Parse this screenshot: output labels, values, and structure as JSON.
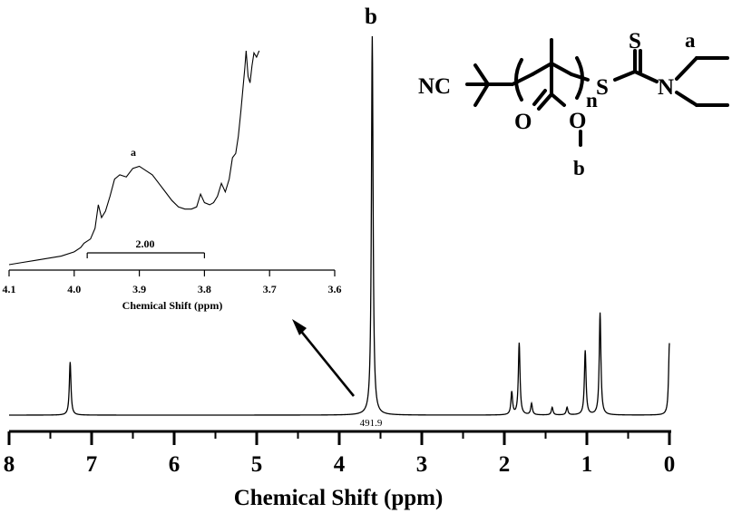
{
  "chart_data": [
    {
      "type": "line",
      "name": "main-spectrum",
      "xlabel": "Chemical Shift (ppm)",
      "xlim": [
        8,
        0
      ],
      "x_ticks": [
        8,
        7,
        6,
        5,
        4,
        3,
        2,
        1,
        0
      ],
      "x_tick_labels": [
        "8",
        "7",
        "6",
        "5",
        "4",
        "3",
        "2",
        "1",
        "0"
      ],
      "peaks": [
        {
          "x": 7.26,
          "height": 0.14
        },
        {
          "x": 3.6,
          "height": 1.0,
          "label": "b"
        },
        {
          "x": 1.91,
          "height": 0.06
        },
        {
          "x": 1.82,
          "height": 0.19
        },
        {
          "x": 1.67,
          "height": 0.03
        },
        {
          "x": 1.42,
          "height": 0.02
        },
        {
          "x": 1.24,
          "height": 0.02
        },
        {
          "x": 1.02,
          "height": 0.17
        },
        {
          "x": 0.84,
          "height": 0.27
        },
        {
          "x": 0.0,
          "height": 0.19
        }
      ],
      "annotations": [
        {
          "text": "b",
          "x": 3.6
        },
        {
          "text": "491.9",
          "x": 3.6
        }
      ]
    },
    {
      "type": "line",
      "name": "inset-spectrum",
      "xlabel": "Chemical Shift (ppm)",
      "xlim": [
        4.1,
        3.6
      ],
      "x_ticks": [
        4.1,
        4.0,
        3.9,
        3.8,
        3.7,
        3.6
      ],
      "x_tick_labels": [
        "4.1",
        "4.0",
        "3.9",
        "3.8",
        "3.7",
        "3.6"
      ],
      "peak_label": "a",
      "integral": {
        "from": 3.98,
        "to": 3.8,
        "value": "2.00"
      },
      "curve": [
        [
          4.1,
          0.0
        ],
        [
          4.08,
          0.01
        ],
        [
          4.06,
          0.02
        ],
        [
          4.04,
          0.03
        ],
        [
          4.02,
          0.04
        ],
        [
          4.0,
          0.06
        ],
        [
          3.99,
          0.08
        ],
        [
          3.985,
          0.1
        ],
        [
          3.975,
          0.12
        ],
        [
          3.968,
          0.17
        ],
        [
          3.963,
          0.28
        ],
        [
          3.958,
          0.22
        ],
        [
          3.952,
          0.25
        ],
        [
          3.945,
          0.32
        ],
        [
          3.938,
          0.4
        ],
        [
          3.93,
          0.42
        ],
        [
          3.92,
          0.41
        ],
        [
          3.91,
          0.45
        ],
        [
          3.9,
          0.46
        ],
        [
          3.89,
          0.44
        ],
        [
          3.88,
          0.42
        ],
        [
          3.87,
          0.38
        ],
        [
          3.86,
          0.34
        ],
        [
          3.85,
          0.3
        ],
        [
          3.84,
          0.27
        ],
        [
          3.83,
          0.26
        ],
        [
          3.82,
          0.26
        ],
        [
          3.812,
          0.27
        ],
        [
          3.806,
          0.33
        ],
        [
          3.8,
          0.29
        ],
        [
          3.792,
          0.28
        ],
        [
          3.786,
          0.29
        ],
        [
          3.78,
          0.32
        ],
        [
          3.774,
          0.38
        ],
        [
          3.768,
          0.34
        ],
        [
          3.762,
          0.4
        ],
        [
          3.757,
          0.5
        ],
        [
          3.752,
          0.52
        ],
        [
          3.748,
          0.6
        ],
        [
          3.744,
          0.72
        ],
        [
          3.741,
          0.82
        ],
        [
          3.738,
          0.92
        ],
        [
          3.736,
          1.0
        ],
        [
          3.733,
          0.88
        ],
        [
          3.73,
          0.85
        ],
        [
          3.727,
          0.93
        ],
        [
          3.724,
          0.99
        ],
        [
          3.72,
          0.97
        ],
        [
          3.716,
          1.0
        ]
      ]
    }
  ],
  "molecule": {
    "nc": "NC",
    "n": "n",
    "o_carbonyl": "O",
    "o_ester": "O",
    "s_thione": "S",
    "s_thio": "S",
    "n_amine": "N",
    "label_a": "a",
    "label_b": "b"
  },
  "colors": {
    "line": "#000000",
    "background": "#ffffff"
  }
}
